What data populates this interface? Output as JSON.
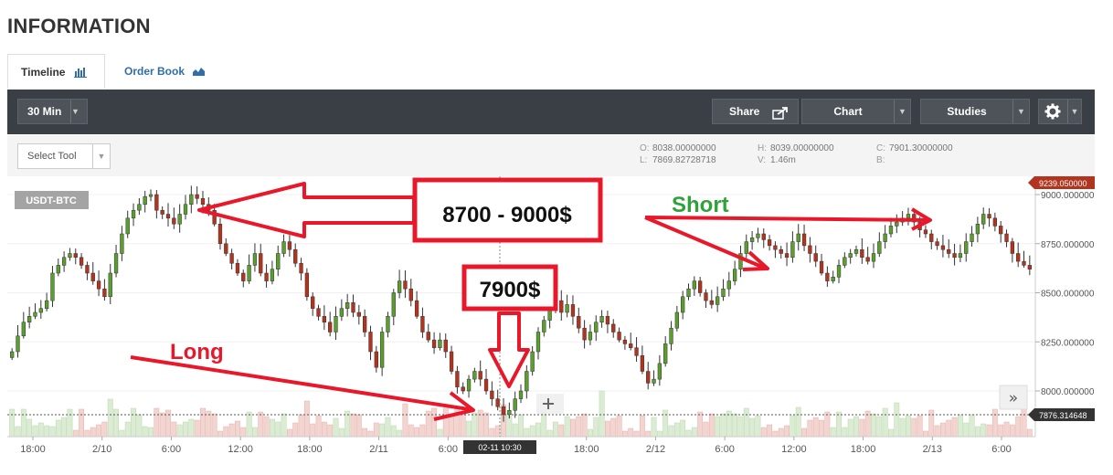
{
  "page": {
    "title": "INFORMATION"
  },
  "tabs": [
    {
      "label": "Timeline",
      "icon": "bar-chart-icon"
    },
    {
      "label": "Order Book",
      "icon": "area-chart-icon"
    }
  ],
  "toolbar": {
    "interval": "30 Min",
    "share": "Share",
    "chart": "Chart",
    "studies": "Studies",
    "settings_icon": "gear-icon"
  },
  "subbar": {
    "select_tool": "Select Tool",
    "ohlc": {
      "O": "8038.00000000",
      "L": "7869.82728718",
      "H": "8039.00000000",
      "V": "1.46m",
      "C": "7901.30000000",
      "B": ""
    }
  },
  "colors": {
    "up": "#5a9e2e",
    "down": "#b2341f",
    "annotation": "#e8182a",
    "short_text": "#2fa23a",
    "price_tag": "#b2341f",
    "current_tag": "#333333"
  },
  "chart_data": {
    "type": "candlestick",
    "symbol": "USDT-BTC",
    "interval": "30 Min",
    "y_ticks": [
      "9000.000000",
      "8750.000000",
      "8500.000000",
      "8250.000000",
      "8000.000000"
    ],
    "ylim": [
      7750,
      9290
    ],
    "x_ticks": [
      "18:00",
      "2/10",
      "6:00",
      "12:00",
      "18:00",
      "2/11",
      "6:00",
      "18:00",
      "2/12",
      "6:00",
      "12:00",
      "18:00",
      "2/13",
      "6:00"
    ],
    "crosshair_label": "02-11 10:30",
    "last_high_tag": "9239.050000",
    "current_price_tag": "7876.314648",
    "close_prices": [
      8200,
      8280,
      8350,
      8380,
      8400,
      8420,
      8460,
      8600,
      8640,
      8680,
      8700,
      8680,
      8640,
      8600,
      8560,
      8520,
      8480,
      8600,
      8700,
      8800,
      8880,
      8920,
      8950,
      8990,
      9000,
      8920,
      8900,
      8880,
      8850,
      8900,
      8950,
      9000,
      8980,
      8950,
      8920,
      8850,
      8750,
      8700,
      8650,
      8600,
      8560,
      8640,
      8700,
      8600,
      8560,
      8620,
      8700,
      8760,
      8720,
      8650,
      8600,
      8480,
      8420,
      8380,
      8350,
      8300,
      8380,
      8420,
      8450,
      8400,
      8380,
      8300,
      8200,
      8120,
      8300,
      8380,
      8500,
      8560,
      8520,
      8460,
      8380,
      8300,
      8260,
      8220,
      8260,
      8200,
      8100,
      8020,
      8000,
      8060,
      8100,
      8060,
      8000,
      7960,
      7920,
      7880,
      7901,
      7960,
      8000,
      8100,
      8200,
      8300,
      8360,
      8420,
      8460,
      8400,
      8440,
      8380,
      8320,
      8260,
      8300,
      8350,
      8380,
      8340,
      8300,
      8260,
      8240,
      8220,
      8180,
      8100,
      8040,
      8060,
      8140,
      8240,
      8320,
      8400,
      8480,
      8520,
      8560,
      8500,
      8460,
      8440,
      8480,
      8520,
      8560,
      8620,
      8700,
      8760,
      8780,
      8800,
      8770,
      8740,
      8720,
      8700,
      8680,
      8760,
      8800,
      8740,
      8700,
      8660,
      8600,
      8560,
      8580,
      8640,
      8680,
      8700,
      8720,
      8680,
      8660,
      8700,
      8760,
      8800,
      8840,
      8860,
      8880,
      8900,
      8860,
      8820,
      8800,
      8760,
      8740,
      8720,
      8700,
      8680,
      8700,
      8760,
      8800,
      8850,
      8900,
      8880,
      8840,
      8800,
      8760,
      8700,
      8660,
      8640,
      8620
    ]
  },
  "annotations": {
    "high_label": "8700 - 9000$",
    "low_label": "7900$",
    "long_label": "Long",
    "short_label": "Short"
  }
}
